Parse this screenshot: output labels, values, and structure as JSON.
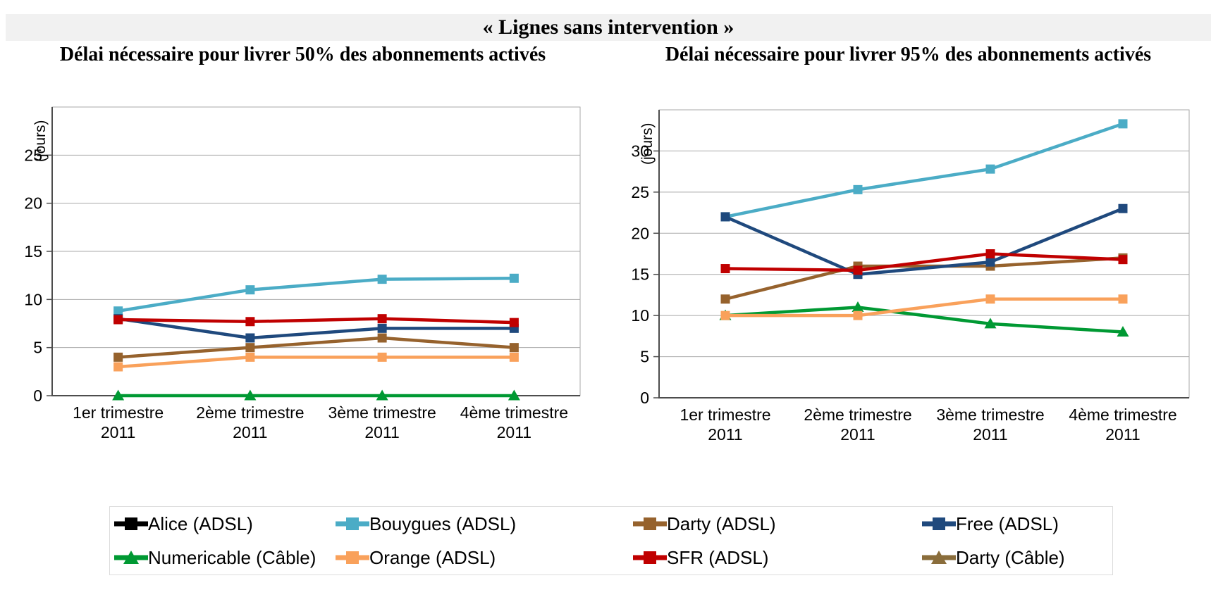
{
  "page_title": "« Lignes sans intervention »",
  "chart_data": [
    {
      "type": "line",
      "title": "Délai nécessaire pour livrer 50% des abonnements activés",
      "ylabel": "(jours)",
      "xlabel": "",
      "categories": [
        "1er trimestre",
        "2ème trimestre",
        "3ème trimestre",
        "4ème trimestre"
      ],
      "category_year": "2011",
      "ylim": [
        0,
        30
      ],
      "yticks": [
        0,
        5,
        10,
        15,
        20,
        25
      ],
      "grid": true,
      "legend_position": "bottom-shared",
      "series": [
        {
          "name": "Bouygues (ADSL)",
          "values": [
            8.8,
            11,
            12.1,
            12.2
          ]
        },
        {
          "name": "Darty (ADSL)",
          "values": [
            4,
            5,
            6,
            5
          ]
        },
        {
          "name": "Free (ADSL)",
          "values": [
            8,
            6,
            7,
            7
          ]
        },
        {
          "name": "Numericable (Câble)",
          "values": [
            0,
            0,
            0,
            0
          ]
        },
        {
          "name": "Orange (ADSL)",
          "values": [
            3,
            4,
            4,
            4
          ]
        },
        {
          "name": "SFR (ADSL)",
          "values": [
            7.9,
            7.7,
            8,
            7.6
          ]
        }
      ]
    },
    {
      "type": "line",
      "title": "Délai nécessaire pour livrer 95% des abonnements activés",
      "ylabel": "(jours)",
      "xlabel": "",
      "categories": [
        "1er trimestre",
        "2ème trimestre",
        "3ème trimestre",
        "4ème trimestre"
      ],
      "category_year": "2011",
      "ylim": [
        0,
        35
      ],
      "yticks": [
        0,
        5,
        10,
        15,
        20,
        25,
        30
      ],
      "grid": true,
      "legend_position": "bottom-shared",
      "series": [
        {
          "name": "Bouygues (ADSL)",
          "values": [
            22,
            25.3,
            27.8,
            33.3
          ]
        },
        {
          "name": "Darty (ADSL)",
          "values": [
            12,
            16,
            16,
            17
          ]
        },
        {
          "name": "Free (ADSL)",
          "values": [
            22,
            15,
            16.5,
            23
          ]
        },
        {
          "name": "Numericable (Câble)",
          "values": [
            10,
            11,
            9,
            8
          ]
        },
        {
          "name": "Orange (ADSL)",
          "values": [
            10,
            10,
            12,
            12
          ]
        },
        {
          "name": "SFR (ADSL)",
          "values": [
            15.7,
            15.5,
            17.5,
            16.8
          ]
        }
      ]
    }
  ],
  "legend": {
    "items": [
      {
        "label": "Alice (ADSL)",
        "color": "#000000",
        "marker": "square"
      },
      {
        "label": "Bouygues (ADSL)",
        "color": "#4BACC6",
        "marker": "square"
      },
      {
        "label": "Darty (ADSL)",
        "color": "#96622D",
        "marker": "square"
      },
      {
        "label": "Free (ADSL)",
        "color": "#1F497D",
        "marker": "square"
      },
      {
        "label": "Numericable (Câble)",
        "color": "#009933",
        "marker": "triangle"
      },
      {
        "label": "Orange (ADSL)",
        "color": "#F9A15B",
        "marker": "square"
      },
      {
        "label": "SFR (ADSL)",
        "color": "#C00000",
        "marker": "square"
      },
      {
        "label": "Darty (Câble)",
        "color": "#8A6D3B",
        "marker": "triangle"
      }
    ]
  },
  "colors": {
    "grid": "#A9A9A9",
    "axis": "#4D4D4D",
    "title_band_bg": "#F1F1F1"
  }
}
